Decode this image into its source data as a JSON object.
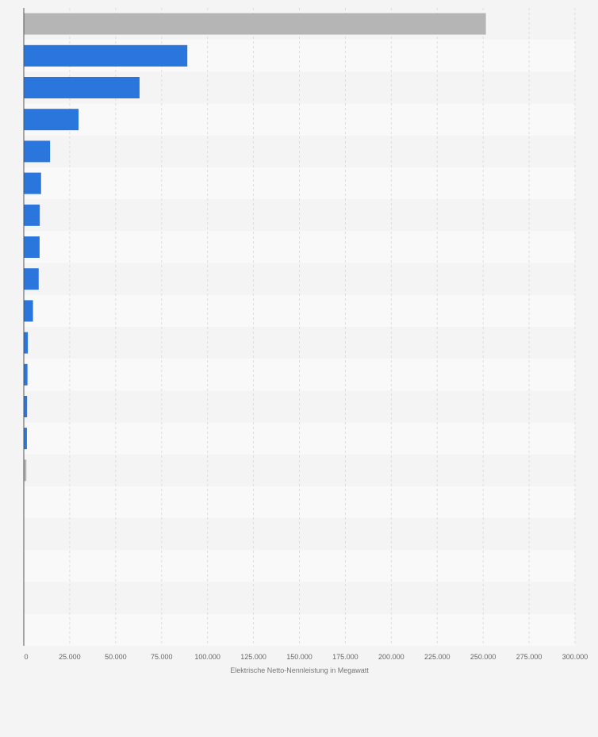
{
  "chart_data": {
    "type": "bar",
    "orientation": "horizontal",
    "xlabel": "Elektrische Netto-Nennleistung in Megawatt",
    "xlim": [
      0,
      300000
    ],
    "x_ticks": [
      0,
      25000,
      50000,
      75000,
      100000,
      125000,
      150000,
      175000,
      200000,
      225000,
      250000,
      275000,
      300000
    ],
    "x_tick_labels": [
      "0",
      "25.000",
      "50.000",
      "75.000",
      "100.000",
      "125.000",
      "150.000",
      "175.000",
      "200.000",
      "225.000",
      "250.000",
      "275.000",
      "300.000"
    ],
    "grid": true,
    "values": [
      251500,
      89000,
      63000,
      29800,
      14300,
      9400,
      8700,
      8600,
      8100,
      5000,
      2200,
      2000,
      1800,
      1700,
      1400,
      0,
      0,
      0,
      0,
      0
    ],
    "bar_colors": [
      "#b5b5b5",
      "#2a76dd",
      "#2a76dd",
      "#2a76dd",
      "#2a76dd",
      "#2a76dd",
      "#2a76dd",
      "#2a76dd",
      "#2a76dd",
      "#2a76dd",
      "#2a76dd",
      "#2a76dd",
      "#2a76dd",
      "#2a76dd",
      "#b5b5b5",
      "#2a76dd",
      "#2a76dd",
      "#2a76dd",
      "#2a76dd",
      "#2a76dd"
    ]
  },
  "colors": {
    "background": "#f4f4f4",
    "row_alt": "#f9f9f9",
    "gridline": "#dddddd",
    "axis": "#555555"
  }
}
